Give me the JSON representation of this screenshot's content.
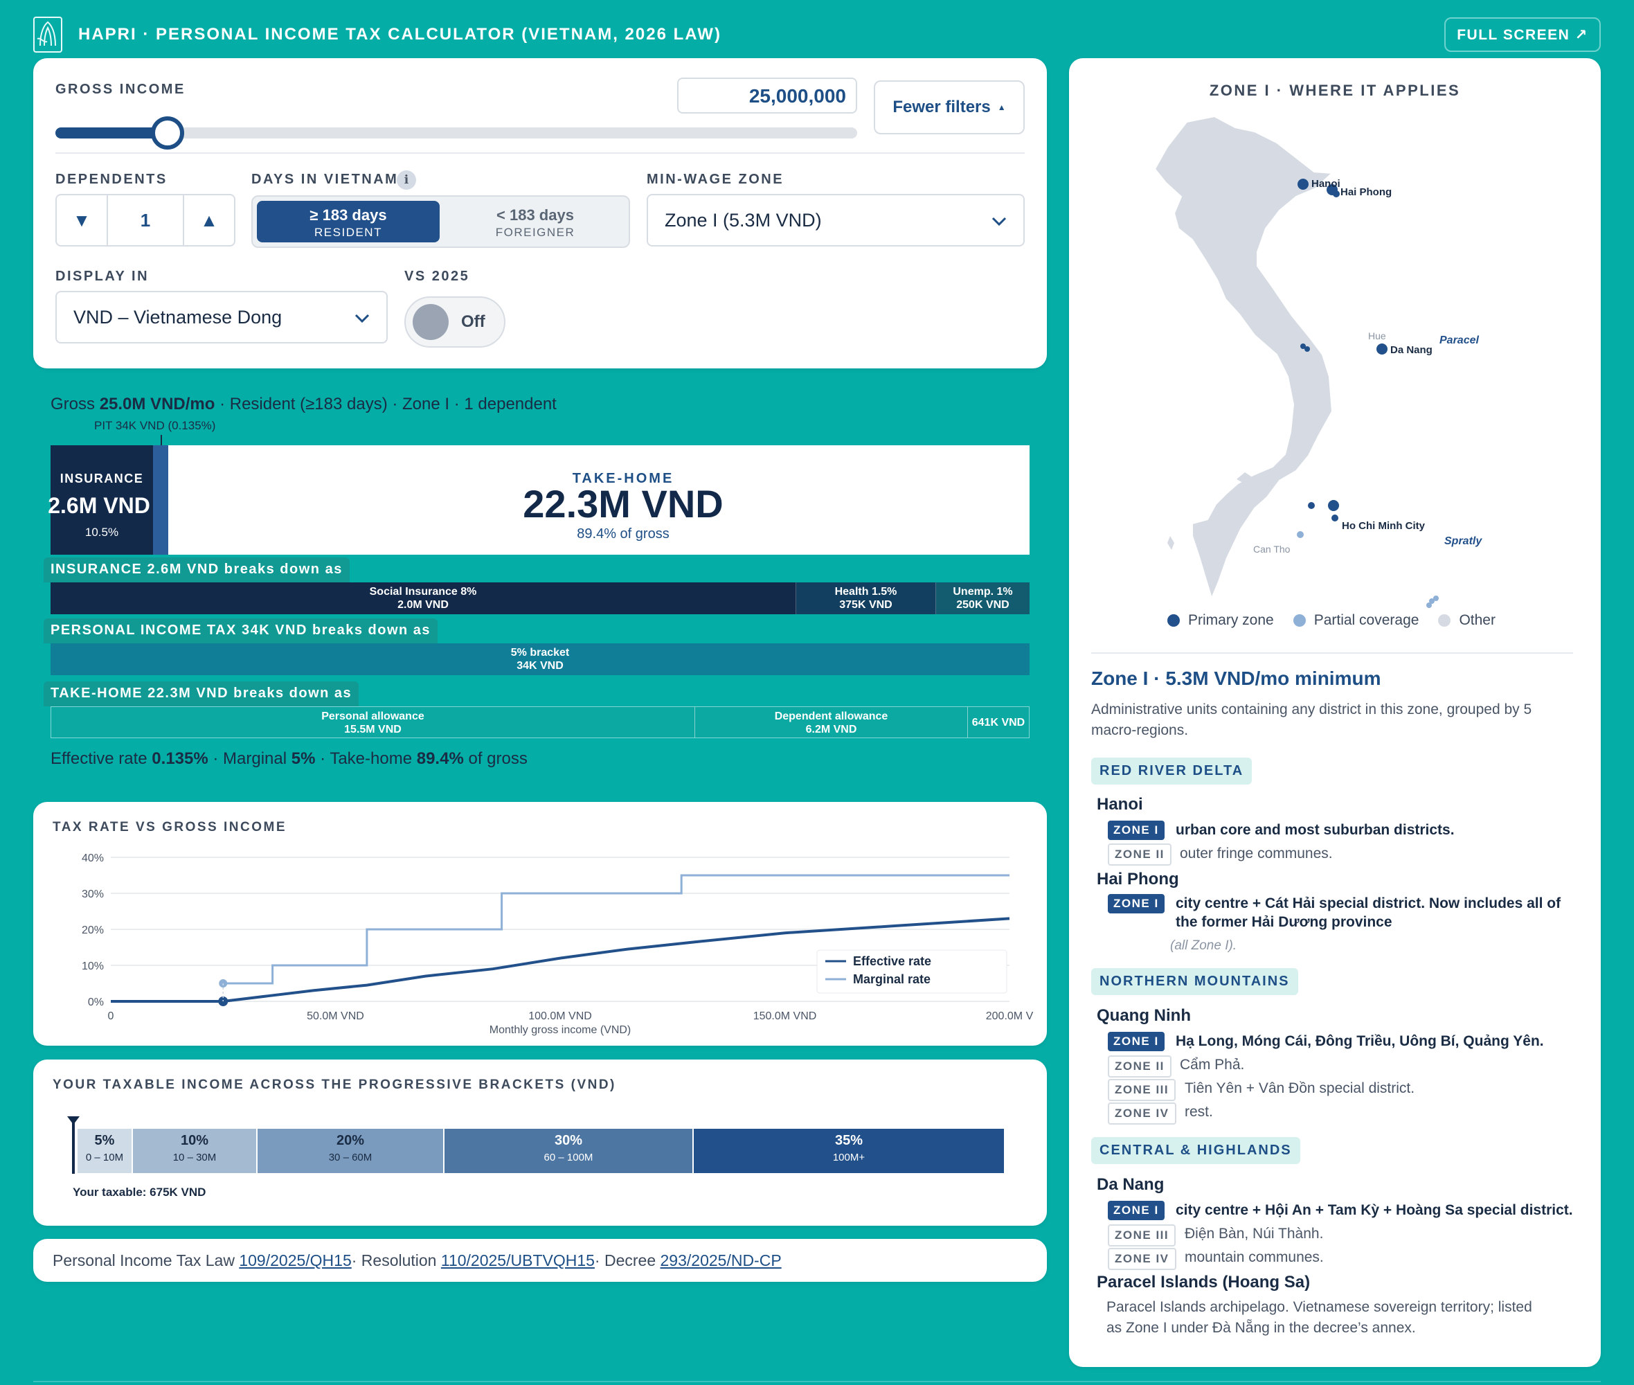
{
  "header": {
    "title": "HAPRI · PERSONAL INCOME TAX CALCULATOR (VIETNAM, 2026 LAW)",
    "fullscreen_label": "FULL SCREEN ↗"
  },
  "filters": {
    "gross_income_label": "GROSS INCOME",
    "gross_income_value": "25,000,000",
    "fewer_filters_label": "Fewer filters",
    "slider_fraction": 0.14,
    "dependents_label": "DEPENDENTS",
    "dependents_value": "1",
    "days_label": "DAYS IN VIETNAM",
    "days_resident_main": "≥ 183 days",
    "days_resident_sub": "RESIDENT",
    "days_foreigner_main": "< 183 days",
    "days_foreigner_sub": "FOREIGNER",
    "zone_label": "MIN-WAGE ZONE",
    "zone_value": "Zone I (5.3M VND)",
    "display_label": "DISPLAY IN",
    "display_value": "VND – Vietnamese Dong",
    "vs_label": "VS 2025",
    "vs_value": "Off"
  },
  "summary": {
    "line_prefix": "Gross ",
    "line_bold": "25.0M VND/mo",
    "line_rest": " · Resident (≥183 days) · Zone I · 1 dependent",
    "pit_callout": "PIT 34K VND (0.135%)",
    "insurance_title": "INSURANCE",
    "insurance_value": "2.6M VND",
    "insurance_pct": "10.5%",
    "takehome_title": "TAKE-HOME",
    "takehome_value": "22.3M VND",
    "takehome_pct": "89.4% of gross",
    "effective_prefix": "Effective rate ",
    "effective_rate": "0.135%",
    "marginal_prefix": " · Marginal ",
    "marginal_rate": "5%",
    "takehome_prefix": " · Take-home ",
    "takehome_share": "89.4%",
    "takehome_suffix": " of gross"
  },
  "breakdowns": {
    "insurance": {
      "label": "INSURANCE 2.6M VND breaks down as",
      "segments": [
        {
          "name": "Social Insurance 8%",
          "value": "2.0M VND"
        },
        {
          "name": "Health 1.5%",
          "value": "375K VND"
        },
        {
          "name": "Unemp. 1%",
          "value": "250K VND"
        }
      ]
    },
    "pit": {
      "label": "PERSONAL INCOME TAX 34K VND breaks down as",
      "segments": [
        {
          "name": "5% bracket",
          "value": "34K VND"
        }
      ]
    },
    "takehome": {
      "label": "TAKE-HOME 22.3M VND breaks down as",
      "segments": [
        {
          "name": "Personal allowance",
          "value": "15.5M VND"
        },
        {
          "name": "Dependent allowance",
          "value": "6.2M VND"
        },
        {
          "name": "",
          "value": "641K VND"
        }
      ]
    }
  },
  "chart": {
    "title": "TAX RATE VS GROSS INCOME"
  },
  "chart_data": {
    "type": "line",
    "xlabel": "Monthly gross income (VND)",
    "xticks": [
      "0",
      "50.0M VND",
      "100.0M VND",
      "150.0M VND",
      "200.0M V"
    ],
    "yticks": [
      "40%",
      "30%",
      "20%",
      "10%",
      "0%"
    ],
    "xlim": [
      0,
      200
    ],
    "ylim": [
      0,
      40
    ],
    "legend": "bottom-right",
    "series": [
      {
        "name": "Effective rate",
        "color": "#22508a",
        "x": [
          0,
          25,
          35,
          45,
          57,
          70,
          85,
          100,
          115,
          130,
          150,
          175,
          200
        ],
        "y": [
          0,
          0,
          1.5,
          3,
          4.5,
          7,
          9,
          12,
          14.5,
          16.5,
          19,
          21,
          23
        ]
      },
      {
        "name": "Marginal rate",
        "color": "#8fb0d6",
        "x": [
          25,
          36,
          36,
          57,
          57,
          87,
          87,
          127,
          127,
          200
        ],
        "y": [
          5,
          5,
          10,
          10,
          20,
          20,
          30,
          30,
          35,
          35
        ]
      }
    ],
    "marker": {
      "x": 25,
      "y": 0
    }
  },
  "brackets": {
    "title": "YOUR TAXABLE INCOME ACROSS THE PROGRESSIVE BRACKETS (VND)",
    "items": [
      {
        "rate": "5%",
        "range": "0 – 10M",
        "color": "#cfdbe6"
      },
      {
        "rate": "10%",
        "range": "10 – 30M",
        "color": "#a4bad0"
      },
      {
        "rate": "20%",
        "range": "30 – 60M",
        "color": "#7a9bbd"
      },
      {
        "rate": "30%",
        "range": "60 – 100M",
        "color": "#4d76a3"
      },
      {
        "rate": "35%",
        "range": "100M+",
        "color": "#22508a"
      }
    ],
    "your_taxable": "Your taxable: 675K VND"
  },
  "law": {
    "prefix1": "Personal Income Tax Law ",
    "link1": "109/2025/QH15",
    "prefix2": " · Resolution ",
    "link2": "110/2025/UBTVQH15",
    "prefix3": " · Decree ",
    "link3": "293/2025/ND-CP"
  },
  "zone_panel": {
    "map_title": "ZONE I · WHERE IT APPLIES",
    "map_labels": {
      "hanoi": "Hanoi",
      "haiphong": "Hai Phong",
      "hue": "Hue",
      "danang": "Da Nang",
      "paracel": "Paracel",
      "hcmc": "Ho Chi Minh City",
      "cantho": "Can Tho",
      "spratly": "Spratly"
    },
    "legend": {
      "primary": "Primary zone",
      "partial": "Partial coverage",
      "other": "Other"
    },
    "heading": "Zone I · 5.3M VND/mo minimum",
    "description": "Administrative units containing any district in this zone, grouped by 5 macro-regions.",
    "regions": {
      "red_river": "RED RIVER DELTA",
      "northern": "NORTHERN MOUNTAINS",
      "central": "CENTRAL & HIGHLANDS"
    },
    "hanoi": {
      "name": "Hanoi",
      "z1": "ZONE I",
      "z1_text": "urban core and most suburban districts.",
      "z2": "ZONE II",
      "z2_text": "outer fringe communes."
    },
    "haiphong": {
      "name": "Hai Phong",
      "z1": "ZONE I",
      "z1_text_1": "city centre + Cát Hải special district. Now includes all of",
      "z1_text_2": "the former Hải Dương province",
      "note": "(all Zone I)."
    },
    "quangninh": {
      "name": "Quang Ninh",
      "z1": "ZONE I",
      "z1_text": "Hạ Long, Móng Cái, Đông Triều, Uông Bí, Quảng Yên.",
      "z2": "ZONE II",
      "z2_text": "Cẩm Phả.",
      "z3": "ZONE III",
      "z3_text": "Tiên Yên + Vân Đồn special district.",
      "z4": "ZONE IV",
      "z4_text": "rest."
    },
    "danang": {
      "name": "Da Nang",
      "z1": "ZONE I",
      "z1_text": "city centre + Hội An + Tam Kỳ + Hoàng Sa special district.",
      "z3": "ZONE III",
      "z3_text": "Điện Bàn, Núi Thành.",
      "z4": "ZONE IV",
      "z4_text": "mountain communes."
    },
    "paracel": {
      "name": "Paracel Islands (Hoang Sa)",
      "text_1": "Paracel Islands archipelago. Vietnamese sovereign territory; listed",
      "text_2": "as Zone I under Đà Nẵng in the decree’s annex."
    }
  }
}
